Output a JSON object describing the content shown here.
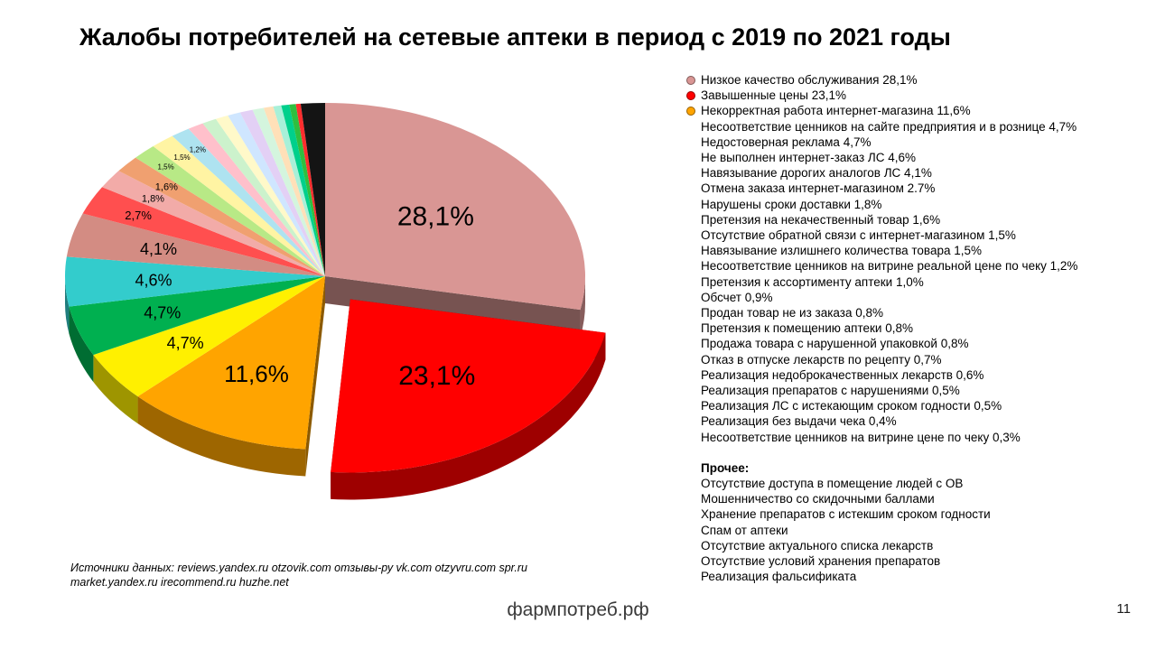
{
  "title": "Жалобы потребителей на сетевые аптеки в период с 2019 по 2021 годы",
  "chart_data": {
    "type": "pie",
    "title": "Жалобы потребителей на сетевые аптеки в период с 2019 по 2021 годы",
    "legend_position": "right",
    "style": "3d-exploded",
    "slices": [
      {
        "name": "Низкое качество обслуживания",
        "value": 28.1,
        "display": "28,1%",
        "color": "#D99694"
      },
      {
        "name": "Завышенные цены",
        "value": 23.1,
        "display": "23,1%",
        "color": "#FF0000",
        "exploded": true
      },
      {
        "name": "Некорректная работа интернет-магазина",
        "value": 11.6,
        "display": "11,6%",
        "color": "#FFA400"
      },
      {
        "name": "Несоответствие ценников на сайте предприятия и в рознице",
        "value": 4.7,
        "display": "4,7%",
        "color": "#FFF000"
      },
      {
        "name": "Недостоверная реклама",
        "value": 4.7,
        "display": "4,7%",
        "color": "#00B050"
      },
      {
        "name": "Не выполнен интернет-заказ ЛС",
        "value": 4.6,
        "display": "4,6%",
        "color": "#33CCCC"
      },
      {
        "name": "Навязывание дорогих аналогов ЛС",
        "value": 4.1,
        "display": "4,1%",
        "color": "#D38C83"
      },
      {
        "name": "Отмена заказа интернет-магазином",
        "value": 2.7,
        "display": "2,7%",
        "color": "#FF4F4F"
      },
      {
        "name": "Нарушены сроки доставки",
        "value": 1.8,
        "display": "1,8%",
        "color": "#F2ABA8"
      },
      {
        "name": "Претензия на некачественный товар",
        "value": 1.6,
        "display": "1,6%",
        "color": "#F0A070"
      },
      {
        "name": "Отсутствие обратной связи с интернет-магазином",
        "value": 1.5,
        "display": "1,5%",
        "color": "#B8E986"
      },
      {
        "name": "Навязывание излишнего количества товара",
        "value": 1.5,
        "display": "1,5%",
        "color": "#FFF4A3"
      },
      {
        "name": "Несоответствие ценников на витрине реальной цене по чеку",
        "value": 1.2,
        "display": "1,2%",
        "color": "#AEE3F0"
      },
      {
        "name": "Претензия к ассортименту аптеки",
        "value": 1.0,
        "display": "",
        "color": "#FFC0CB"
      },
      {
        "name": "Обсчет",
        "value": 0.9,
        "display": "",
        "color": "#CCF2CC"
      },
      {
        "name": "Продан товар не из заказа",
        "value": 0.8,
        "display": "",
        "color": "#FFF9C9"
      },
      {
        "name": "Претензия к помещению аптеки",
        "value": 0.8,
        "display": "",
        "color": "#CFE6FF"
      },
      {
        "name": "Продажа товара с нарушенной упаковкой",
        "value": 0.8,
        "display": "",
        "color": "#E3D0F5"
      },
      {
        "name": "Отказ в отпуске лекарств по рецепту",
        "value": 0.7,
        "display": "",
        "color": "#D4F5DE"
      },
      {
        "name": "Реализация недоброкачественных лекарств",
        "value": 0.6,
        "display": "",
        "color": "#FFE0B8"
      },
      {
        "name": "Реализация препаратов с нарушениями",
        "value": 0.5,
        "display": "",
        "color": "#A8F0D8"
      },
      {
        "name": "Реализация ЛС с истекающим сроком годности",
        "value": 0.5,
        "display": "",
        "color": "#00D08C"
      },
      {
        "name": "Реализация без выдачи чека",
        "value": 0.4,
        "display": "",
        "color": "#2FBF3F"
      },
      {
        "name": "Несоответствие ценников на витрине цене по чеку",
        "value": 0.3,
        "display": "",
        "color": "#FF2D2D"
      },
      {
        "name": "Прочее",
        "value": 1.5,
        "display": "",
        "color": "#141414"
      }
    ]
  },
  "legend": {
    "items": [
      {
        "text": "Низкое качество обслуживания 28,1%",
        "marker": "#D99694"
      },
      {
        "text": "Завышенные цены 23,1%",
        "marker": "#FF0000"
      },
      {
        "text": "Некорректная работа интернет-магазина 11,6%",
        "marker": "#FFA400"
      },
      {
        "text": "Несоответствие ценников на сайте предприятия и в рознице 4,7%",
        "marker": null
      },
      {
        "text": "Недостоверная реклама 4,7%",
        "marker": null
      },
      {
        "text": "Не выполнен интернет-заказ ЛС 4,6%",
        "marker": null
      },
      {
        "text": "Навязывание дорогих аналогов ЛС 4,1%",
        "marker": null
      },
      {
        "text": "Отмена заказа интернет-магазином 2.7%",
        "marker": null
      },
      {
        "text": "Нарушены сроки доставки 1,8%",
        "marker": null
      },
      {
        "text": "Претензия на некачественный товар 1,6%",
        "marker": null
      },
      {
        "text": "Отсутствие обратной связи с интернет-магазином 1,5%",
        "marker": null
      },
      {
        "text": "Навязывание излишнего количества товара 1,5%",
        "marker": null
      },
      {
        "text": "Несоответствие ценников на витрине реальной цене по чеку 1,2%",
        "marker": null
      },
      {
        "text": "Претензия к ассортименту аптеки 1,0%",
        "marker": null
      },
      {
        "text": "Обсчет 0,9%",
        "marker": null
      },
      {
        "text": "Продан товар не из заказа 0,8%",
        "marker": null
      },
      {
        "text": "Претензия к помещению аптеки 0,8%",
        "marker": null
      },
      {
        "text": "Продажа товара с нарушенной упаковкой 0,8%",
        "marker": null
      },
      {
        "text": "Отказ в отпуске лекарств по рецепту 0,7%",
        "marker": null
      },
      {
        "text": "Реализация недоброкачественных лекарств 0,6%",
        "marker": null
      },
      {
        "text": "Реализация препаратов с нарушениями 0,5%",
        "marker": null
      },
      {
        "text": "Реализация ЛС с истекающим сроком годности 0,5%",
        "marker": null
      },
      {
        "text": "Реализация без выдачи чека 0,4%",
        "marker": null
      },
      {
        "text": "Несоответствие ценников на витрине цене по чеку 0,3%",
        "marker": null
      }
    ],
    "other_title": "Прочее:",
    "other_items": [
      "Отсутствие доступа в помещение людей с ОВ",
      "Мошенничество со скидочными баллами",
      "Хранение препаратов с истекшим сроком годности",
      "Спам от аптеки",
      "Отсутствие актуального списка лекарств",
      "Отсутствие условий хранения препаратов",
      "Реализация фальсификата"
    ]
  },
  "footer": {
    "sources_line1": "Источники данных: reviews.yandex.ru otzovik.com отзывы-ру vk.com otzyvru.com spr.ru",
    "sources_line2": "market.yandex.ru irecommend.ru huzhe.net",
    "site": "фармпотреб.рф",
    "page_number": "11"
  }
}
